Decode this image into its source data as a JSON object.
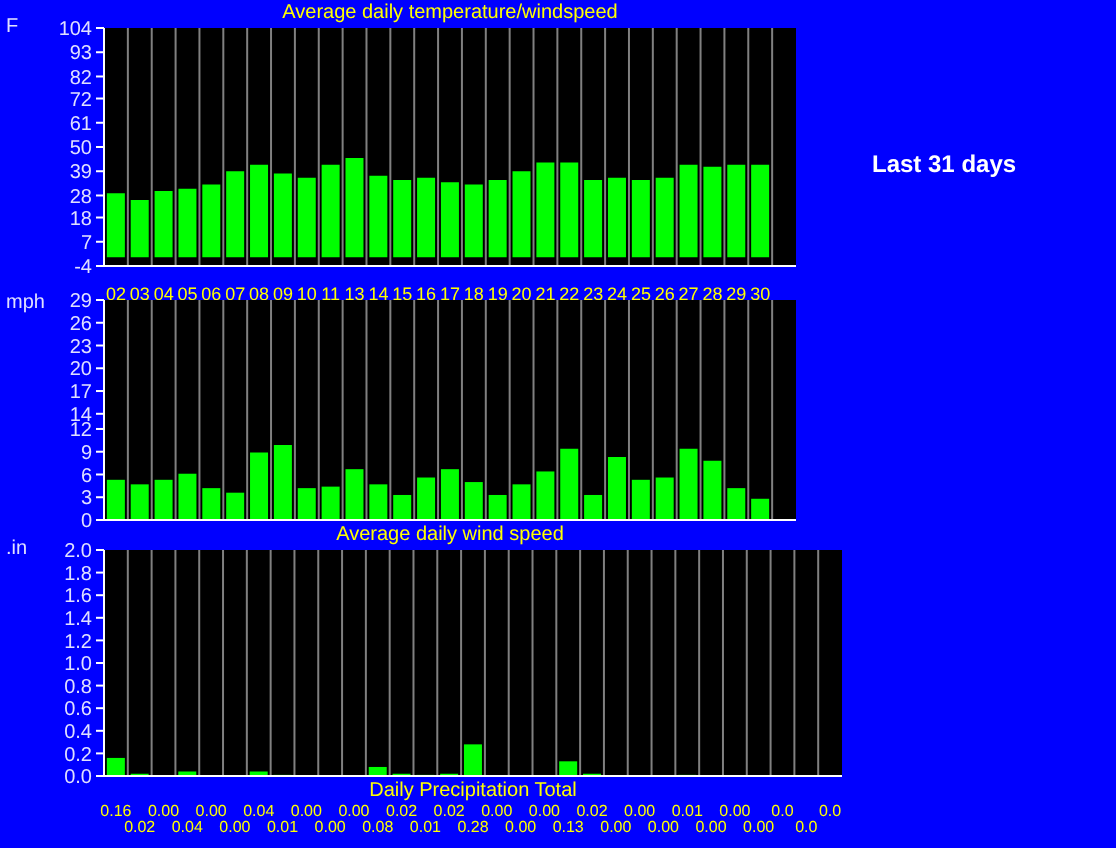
{
  "chart_data": [
    {
      "type": "bar",
      "title": "Average daily temperature/windspeed",
      "ylabel": "F",
      "annotations": [
        "Last 31 days"
      ],
      "categories": [
        "02",
        "03",
        "04",
        "05",
        "06",
        "07",
        "08",
        "09",
        "10",
        "11",
        "13",
        "14",
        "15",
        "16",
        "17",
        "18",
        "19",
        "20",
        "21",
        "22",
        "23",
        "24",
        "25",
        "26",
        "27",
        "28",
        "29",
        "30",
        null
      ],
      "values": [
        29,
        26,
        30,
        31,
        33,
        39,
        42,
        38,
        36,
        42,
        45,
        37,
        35,
        36,
        34,
        33,
        35,
        39,
        43,
        43,
        35,
        36,
        35,
        36,
        42,
        41,
        42,
        42,
        null
      ],
      "color": "#00ff00",
      "ylim": [
        -4,
        104
      ],
      "yticks": [
        -4,
        7,
        18,
        28,
        39,
        50,
        61,
        72,
        82,
        93,
        104
      ],
      "grid": "x"
    },
    {
      "type": "bar",
      "ylabel": "mph",
      "xlabel": "Average daily wind speed",
      "categories": [
        null,
        null,
        null,
        null,
        null,
        null,
        null,
        null,
        null,
        null,
        null,
        null,
        null,
        null,
        null,
        null,
        null,
        null,
        null,
        null,
        null,
        null,
        null,
        null,
        null,
        null,
        null,
        null,
        null
      ],
      "values": [
        5.3,
        4.7,
        5.3,
        6.1,
        4.2,
        3.6,
        8.9,
        9.9,
        4.2,
        4.4,
        6.7,
        4.7,
        3.3,
        5.6,
        6.7,
        5,
        3.3,
        4.7,
        6.4,
        9.4,
        3.3,
        8.3,
        5.3,
        5.6,
        9.4,
        7.8,
        4.2,
        2.8,
        null
      ],
      "color": "#00ff00",
      "ylim": [
        0,
        29
      ],
      "yticks": [
        0,
        3,
        6,
        9,
        12,
        14,
        17,
        20,
        23,
        26,
        29
      ],
      "grid": "x",
      "tick_labels": "y"
    },
    {
      "type": "bar",
      "ylabel": ".in",
      "xlabel": "Daily Precipitation Total",
      "categories": [
        null,
        null,
        null,
        null,
        null,
        null,
        null,
        null,
        null,
        null,
        null,
        null,
        null,
        null,
        null,
        null,
        null,
        null,
        null,
        null,
        null,
        null,
        null,
        null,
        null,
        null,
        null,
        null,
        null,
        null,
        null
      ],
      "values": [
        0.16,
        0.02,
        0,
        0.04,
        0,
        0,
        0.04,
        0.01,
        0,
        0,
        0,
        0.08,
        0.02,
        0.01,
        0.02,
        0.28,
        0,
        0,
        0,
        0.13,
        0.02,
        0,
        0,
        0,
        0.01,
        0,
        0,
        0,
        0,
        0,
        0
      ],
      "value_labels": [
        "0.16",
        "0.02",
        "0.00",
        "0.04",
        "0.00",
        "0.00",
        "0.04",
        "0.01",
        "0.00",
        "0.00",
        "0.00",
        "0.08",
        "0.02",
        "0.01",
        "0.02",
        "0.28",
        "0.00",
        "0.00",
        "0.00",
        "0.13",
        "0.02",
        "0.00",
        "0.00",
        "0.00",
        "0.01",
        "0.00",
        "0.00",
        "0.00",
        "0.0",
        "0.0",
        "0.0"
      ],
      "color": "#00ff00",
      "ylim": [
        0,
        2.0
      ],
      "yticks": [
        {
          "value": 0,
          "label": "0.0"
        },
        0.2,
        0.4,
        0.6,
        0.8,
        {
          "value": 1,
          "label": "1.0"
        },
        1.2,
        1.4,
        1.6,
        1.8,
        {
          "value": 2,
          "label": "2.0"
        }
      ],
      "grid": "x",
      "tick_labels": "y"
    }
  ]
}
